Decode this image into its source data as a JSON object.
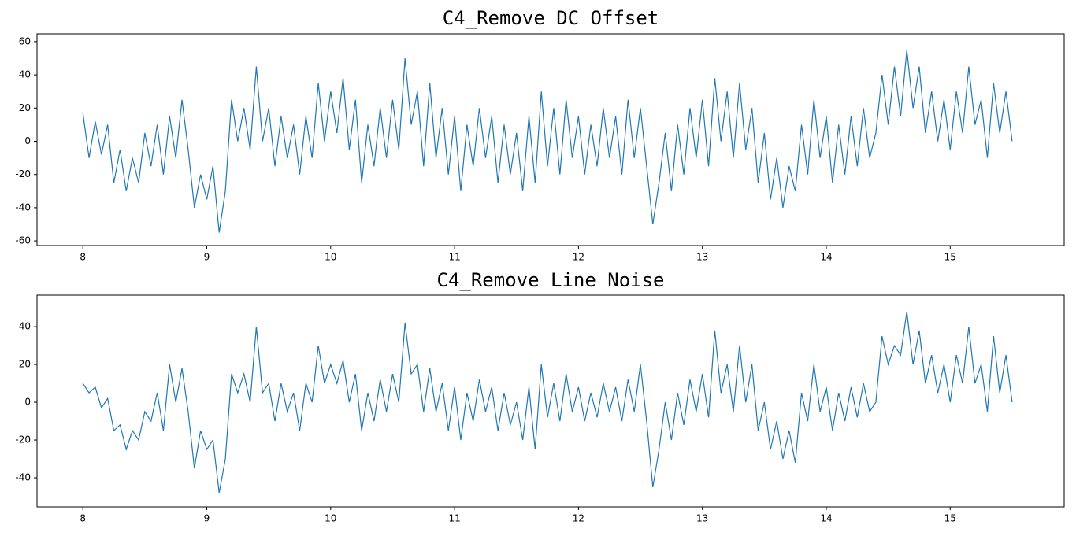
{
  "chart_data": [
    {
      "type": "line",
      "title": "C4_Remove DC Offset",
      "x": [
        8.0,
        8.05,
        8.1,
        8.15,
        8.2,
        8.25,
        8.3,
        8.35,
        8.4,
        8.45,
        8.5,
        8.55,
        8.6,
        8.65,
        8.7,
        8.75,
        8.8,
        8.85,
        8.9,
        8.95,
        9.0,
        9.05,
        9.1,
        9.15,
        9.2,
        9.25,
        9.3,
        9.35,
        9.4,
        9.45,
        9.5,
        9.55,
        9.6,
        9.65,
        9.7,
        9.75,
        9.8,
        9.85,
        9.9,
        9.95,
        10.0,
        10.05,
        10.1,
        10.15,
        10.2,
        10.25,
        10.3,
        10.35,
        10.4,
        10.45,
        10.5,
        10.55,
        10.6,
        10.65,
        10.7,
        10.75,
        10.8,
        10.85,
        10.9,
        10.95,
        11.0,
        11.05,
        11.1,
        11.15,
        11.2,
        11.25,
        11.3,
        11.35,
        11.4,
        11.45,
        11.5,
        11.55,
        11.6,
        11.65,
        11.7,
        11.75,
        11.8,
        11.85,
        11.9,
        11.95,
        12.0,
        12.05,
        12.1,
        12.15,
        12.2,
        12.25,
        12.3,
        12.35,
        12.4,
        12.45,
        12.5,
        12.55,
        12.6,
        12.65,
        12.7,
        12.75,
        12.8,
        12.85,
        12.9,
        12.95,
        13.0,
        13.05,
        13.1,
        13.15,
        13.2,
        13.25,
        13.3,
        13.35,
        13.4,
        13.45,
        13.5,
        13.55,
        13.6,
        13.65,
        13.7,
        13.75,
        13.8,
        13.85,
        13.9,
        13.95,
        14.0,
        14.05,
        14.1,
        14.15,
        14.2,
        14.25,
        14.3,
        14.35,
        14.4,
        14.45,
        14.5,
        14.55,
        14.6,
        14.65,
        14.7,
        14.75,
        14.8,
        14.85,
        14.9,
        14.95,
        15.0,
        15.05,
        15.1,
        15.15,
        15.2,
        15.25,
        15.3,
        15.35,
        15.4,
        15.45,
        15.5
      ],
      "series": [
        {
          "color": "#1f77b4",
          "values": [
            17,
            -10,
            12,
            -8,
            10,
            -25,
            -5,
            -30,
            -10,
            -25,
            5,
            -15,
            10,
            -20,
            15,
            -10,
            25,
            -5,
            -40,
            -20,
            -35,
            -15,
            -55,
            -30,
            25,
            0,
            20,
            -5,
            45,
            0,
            20,
            -15,
            15,
            -10,
            10,
            -20,
            15,
            -10,
            35,
            0,
            30,
            5,
            38,
            -5,
            25,
            -25,
            10,
            -15,
            20,
            -10,
            25,
            -5,
            50,
            10,
            30,
            -15,
            35,
            -10,
            20,
            -20,
            15,
            -30,
            10,
            -15,
            20,
            -10,
            15,
            -25,
            10,
            -20,
            5,
            -30,
            15,
            -25,
            30,
            -15,
            20,
            -20,
            25,
            -10,
            15,
            -20,
            10,
            -15,
            20,
            -10,
            15,
            -20,
            25,
            -10,
            20,
            -15,
            -50,
            -25,
            5,
            -30,
            10,
            -20,
            20,
            -10,
            25,
            -15,
            38,
            0,
            30,
            -10,
            35,
            -5,
            20,
            -25,
            5,
            -35,
            -10,
            -40,
            -15,
            -30,
            10,
            -20,
            25,
            -10,
            15,
            -25,
            10,
            -20,
            15,
            -15,
            20,
            -10,
            5,
            40,
            10,
            45,
            15,
            55,
            20,
            45,
            5,
            30,
            0,
            25,
            -5,
            30,
            5,
            45,
            10,
            25,
            -10,
            35,
            5,
            30,
            0
          ]
        }
      ],
      "xlim": [
        7.63,
        15.92
      ],
      "ylim": [
        -62.8,
        64.7
      ],
      "xticks": [
        8,
        9,
        10,
        11,
        12,
        13,
        14,
        15
      ],
      "yticks": [
        -60,
        -40,
        -20,
        0,
        20,
        40,
        60
      ]
    },
    {
      "type": "line",
      "title": "C4_Remove Line Noise",
      "x": [
        8.0,
        8.05,
        8.1,
        8.15,
        8.2,
        8.25,
        8.3,
        8.35,
        8.4,
        8.45,
        8.5,
        8.55,
        8.6,
        8.65,
        8.7,
        8.75,
        8.8,
        8.85,
        8.9,
        8.95,
        9.0,
        9.05,
        9.1,
        9.15,
        9.2,
        9.25,
        9.3,
        9.35,
        9.4,
        9.45,
        9.5,
        9.55,
        9.6,
        9.65,
        9.7,
        9.75,
        9.8,
        9.85,
        9.9,
        9.95,
        10.0,
        10.05,
        10.1,
        10.15,
        10.2,
        10.25,
        10.3,
        10.35,
        10.4,
        10.45,
        10.5,
        10.55,
        10.6,
        10.65,
        10.7,
        10.75,
        10.8,
        10.85,
        10.9,
        10.95,
        11.0,
        11.05,
        11.1,
        11.15,
        11.2,
        11.25,
        11.3,
        11.35,
        11.4,
        11.45,
        11.5,
        11.55,
        11.6,
        11.65,
        11.7,
        11.75,
        11.8,
        11.85,
        11.9,
        11.95,
        12.0,
        12.05,
        12.1,
        12.15,
        12.2,
        12.25,
        12.3,
        12.35,
        12.4,
        12.45,
        12.5,
        12.55,
        12.6,
        12.65,
        12.7,
        12.75,
        12.8,
        12.85,
        12.9,
        12.95,
        13.0,
        13.05,
        13.1,
        13.15,
        13.2,
        13.25,
        13.3,
        13.35,
        13.4,
        13.45,
        13.5,
        13.55,
        13.6,
        13.65,
        13.7,
        13.75,
        13.8,
        13.85,
        13.9,
        13.95,
        14.0,
        14.05,
        14.1,
        14.15,
        14.2,
        14.25,
        14.3,
        14.35,
        14.4,
        14.45,
        14.5,
        14.55,
        14.6,
        14.65,
        14.7,
        14.75,
        14.8,
        14.85,
        14.9,
        14.95,
        15.0,
        15.05,
        15.1,
        15.15,
        15.2,
        15.25,
        15.3,
        15.35,
        15.4,
        15.45,
        15.5
      ],
      "series": [
        {
          "color": "#1f77b4",
          "values": [
            10,
            5,
            8,
            -3,
            2,
            -15,
            -12,
            -25,
            -15,
            -20,
            -5,
            -10,
            5,
            -15,
            20,
            0,
            18,
            -5,
            -35,
            -15,
            -25,
            -20,
            -48,
            -30,
            15,
            5,
            15,
            0,
            40,
            5,
            10,
            -10,
            10,
            -5,
            5,
            -15,
            10,
            0,
            30,
            10,
            20,
            10,
            22,
            0,
            15,
            -15,
            5,
            -10,
            12,
            -5,
            15,
            0,
            42,
            15,
            20,
            -5,
            18,
            -5,
            10,
            -15,
            8,
            -20,
            5,
            -10,
            12,
            -5,
            8,
            -15,
            5,
            -12,
            0,
            -20,
            8,
            -25,
            20,
            -8,
            10,
            -10,
            15,
            -5,
            8,
            -10,
            5,
            -8,
            10,
            -5,
            8,
            -10,
            12,
            -5,
            20,
            -10,
            -45,
            -25,
            0,
            -20,
            5,
            -12,
            12,
            -5,
            15,
            -8,
            38,
            5,
            20,
            -5,
            30,
            0,
            20,
            -15,
            0,
            -25,
            -10,
            -30,
            -15,
            -32,
            5,
            -10,
            20,
            -5,
            8,
            -15,
            5,
            -10,
            8,
            -8,
            10,
            -5,
            0,
            35,
            20,
            30,
            25,
            48,
            20,
            38,
            10,
            25,
            5,
            20,
            0,
            25,
            10,
            40,
            10,
            20,
            -5,
            35,
            5,
            25,
            0
          ]
        }
      ],
      "xlim": [
        7.63,
        15.92
      ],
      "ylim": [
        -55.4,
        56.7
      ],
      "xticks": [
        8,
        9,
        10,
        11,
        12,
        13,
        14,
        15
      ],
      "yticks": [
        -40,
        -20,
        0,
        20,
        40
      ]
    }
  ]
}
